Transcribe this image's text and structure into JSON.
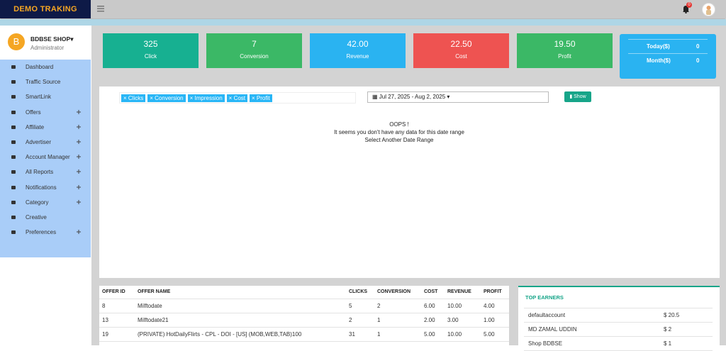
{
  "header": {
    "brand": "DEMO TRAKING",
    "badge": "0"
  },
  "profile": {
    "name": "BDBSE SHOP",
    "role": "Administrator",
    "initial": "B"
  },
  "menu": [
    {
      "label": "Dashboard",
      "expandable": false
    },
    {
      "label": "Traffic Source",
      "expandable": false
    },
    {
      "label": "SmartLink",
      "expandable": false
    },
    {
      "label": "Offers",
      "expandable": true
    },
    {
      "label": "Affiliate",
      "expandable": true
    },
    {
      "label": "Advertiser",
      "expandable": true
    },
    {
      "label": "Account Manager",
      "expandable": true
    },
    {
      "label": "All Reports",
      "expandable": true
    },
    {
      "label": "Notifications",
      "expandable": true
    },
    {
      "label": "Category",
      "expandable": true
    },
    {
      "label": "Creative",
      "expandable": false
    },
    {
      "label": "Preferences",
      "expandable": true
    }
  ],
  "cards": [
    {
      "value": "325",
      "label": "Click",
      "color": "#17b091"
    },
    {
      "value": "7",
      "label": "Conversion",
      "color": "#3bb866"
    },
    {
      "value": "42.00",
      "label": "Revenue",
      "color": "#2ab3f1"
    },
    {
      "value": "22.50",
      "label": "Cost",
      "color": "#ee5351"
    },
    {
      "value": "19.50",
      "label": "Profit",
      "color": "#3bb866"
    }
  ],
  "summary": [
    {
      "label": "Today($)",
      "value": "0"
    },
    {
      "label": "Month($)",
      "value": "0"
    }
  ],
  "filters": {
    "tags": [
      "Clicks",
      "Conversion",
      "Impression",
      "Cost",
      "Profit"
    ],
    "date_range": "Jul 27, 2025 - Aug 2, 2025",
    "button": "Show"
  },
  "message": [
    "OOPS !",
    "It seems you don't have any data for this date range",
    "Select Another Date Range"
  ],
  "table": {
    "columns": [
      "OFFER ID",
      "OFFER NAME",
      "CLICKS",
      "CONVERSION",
      "COST",
      "REVENUE",
      "PROFIT"
    ],
    "rows": [
      [
        "8",
        "Milftodate",
        "5",
        "2",
        "6.00",
        "10.00",
        "4.00"
      ],
      [
        "13",
        "Milftodate21",
        "2",
        "1",
        "2.00",
        "3.00",
        "1.00"
      ],
      [
        "19",
        "(PRIVATE) HotDailyFlirts - CPL - DOI - [US] (MOB,WEB,TAB)100",
        "31",
        "1",
        "5.00",
        "10.00",
        "5.00"
      ]
    ]
  },
  "top_earners": {
    "title": "TOP EARNERS",
    "rows": [
      [
        "defaultaccount",
        "$ 20.5"
      ],
      [
        "MD ZAMAL UDDIN",
        "$ 2"
      ],
      [
        "Shop BDBSE",
        "$ 1"
      ]
    ]
  }
}
